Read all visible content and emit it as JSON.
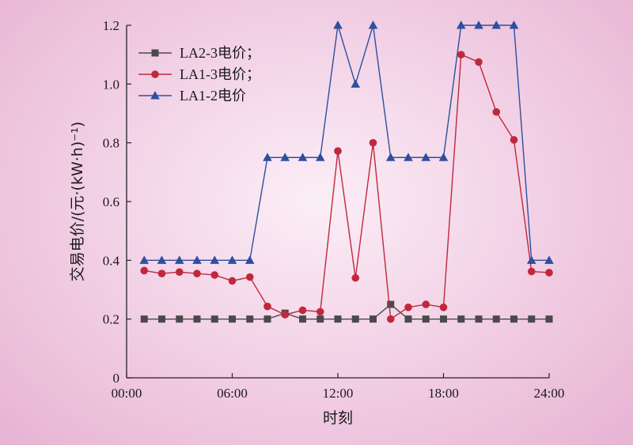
{
  "chart_data": {
    "type": "line",
    "xlabel": "时刻",
    "ylabel": "交易电价/(元·(kW·h)⁻¹)",
    "xlim": [
      0,
      24
    ],
    "ylim": [
      0,
      1.2
    ],
    "x_ticks": [
      0,
      6,
      12,
      18,
      24
    ],
    "x_tick_labels": [
      "00:00",
      "06:00",
      "12:00",
      "18:00",
      "24:00"
    ],
    "y_ticks": [
      0,
      0.2,
      0.4,
      0.6,
      0.8,
      1.0,
      1.2
    ],
    "y_tick_labels": [
      "0",
      "0.2",
      "0.4",
      "0.6",
      "0.8",
      "1.0",
      "1.2"
    ],
    "grid": false,
    "legend_position": "top-left",
    "x": [
      1,
      2,
      3,
      4,
      5,
      6,
      7,
      8,
      9,
      10,
      11,
      12,
      13,
      14,
      15,
      16,
      17,
      18,
      19,
      20,
      21,
      22,
      23,
      24
    ],
    "series": [
      {
        "name": "LA2-3电价；",
        "color": "#4a4a4a",
        "marker": "square",
        "values": [
          0.2,
          0.2,
          0.2,
          0.2,
          0.2,
          0.2,
          0.2,
          0.2,
          0.22,
          0.2,
          0.2,
          0.2,
          0.2,
          0.2,
          0.25,
          0.2,
          0.2,
          0.2,
          0.2,
          0.2,
          0.2,
          0.2,
          0.2,
          0.2
        ]
      },
      {
        "name": "LA1-3电价；",
        "color": "#c0283c",
        "marker": "circle",
        "values": [
          0.365,
          0.355,
          0.36,
          0.355,
          0.35,
          0.33,
          0.343,
          0.243,
          0.215,
          0.23,
          0.225,
          0.772,
          0.34,
          0.8,
          0.2,
          0.24,
          0.25,
          0.24,
          1.1,
          1.075,
          0.905,
          0.81,
          0.362,
          0.358
        ]
      },
      {
        "name": "LA1-2电价",
        "color": "#2f4f9e",
        "marker": "triangle",
        "values": [
          0.4,
          0.4,
          0.4,
          0.4,
          0.4,
          0.4,
          0.4,
          0.75,
          0.75,
          0.75,
          0.75,
          1.2,
          1.0,
          1.2,
          0.75,
          0.75,
          0.75,
          0.75,
          1.2,
          1.2,
          1.2,
          1.2,
          0.4,
          0.4
        ]
      }
    ]
  }
}
